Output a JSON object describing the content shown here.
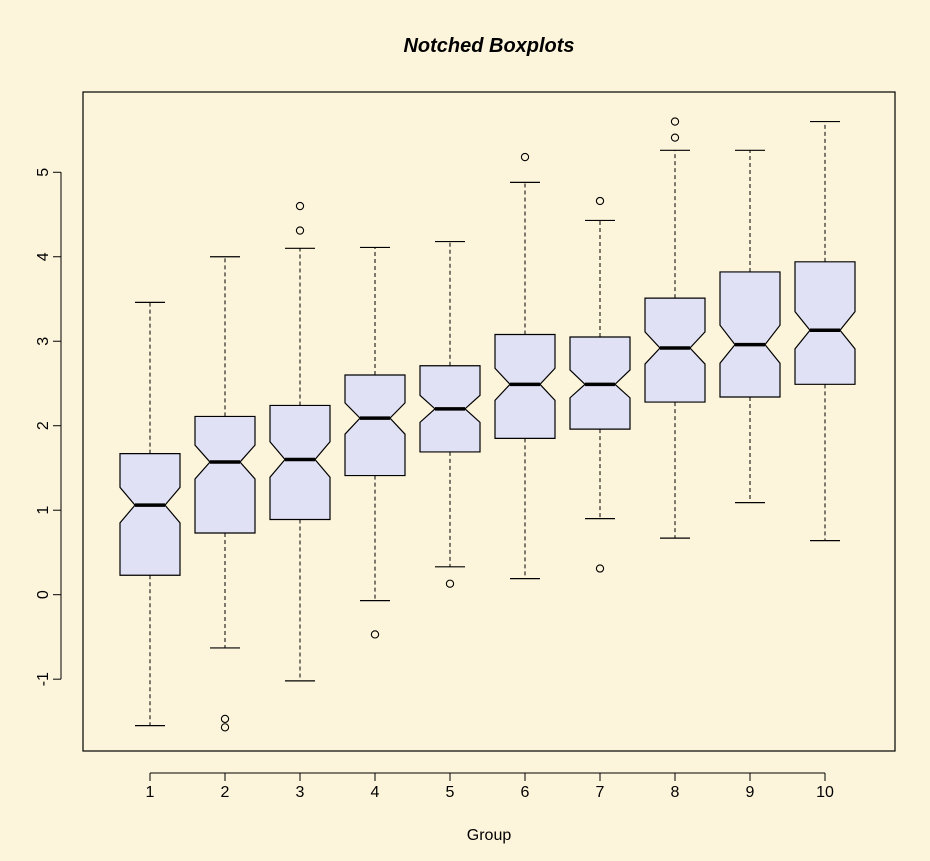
{
  "chart_data": {
    "type": "boxplot",
    "title": "Notched Boxplots",
    "xlabel": "Group",
    "ylabel": "",
    "ylim": [
      -1.85,
      5.95
    ],
    "y_ticks": [
      -1,
      0,
      1,
      2,
      3,
      4,
      5
    ],
    "notched": true,
    "colors": {
      "background": "#fdf5db",
      "box_fill": "#e1e1f5",
      "stroke": "#000000"
    },
    "categories": [
      "1",
      "2",
      "3",
      "4",
      "5",
      "6",
      "7",
      "8",
      "9",
      "10"
    ],
    "boxes": [
      {
        "category": "1",
        "whisker_low": -1.55,
        "q1": 0.23,
        "median": 1.06,
        "q3": 1.67,
        "whisker_high": 3.46,
        "notch": [
          0.85,
          1.27
        ],
        "outliers": []
      },
      {
        "category": "2",
        "whisker_low": -0.63,
        "q1": 0.73,
        "median": 1.57,
        "q3": 2.11,
        "whisker_high": 4.0,
        "notch": [
          1.37,
          1.77
        ],
        "outliers": [
          -1.47,
          -1.57
        ]
      },
      {
        "category": "3",
        "whisker_low": -1.02,
        "q1": 0.89,
        "median": 1.6,
        "q3": 2.24,
        "whisker_high": 4.1,
        "notch": [
          1.39,
          1.81
        ],
        "outliers": [
          4.31,
          4.6
        ]
      },
      {
        "category": "4",
        "whisker_low": -0.07,
        "q1": 1.41,
        "median": 2.09,
        "q3": 2.6,
        "whisker_high": 4.11,
        "notch": [
          1.9,
          2.27
        ],
        "outliers": [
          -0.47
        ]
      },
      {
        "category": "5",
        "whisker_low": 0.33,
        "q1": 1.69,
        "median": 2.2,
        "q3": 2.71,
        "whisker_high": 4.18,
        "notch": [
          2.04,
          2.36
        ],
        "outliers": [
          0.13
        ]
      },
      {
        "category": "6",
        "whisker_low": 0.19,
        "q1": 1.85,
        "median": 2.49,
        "q3": 3.08,
        "whisker_high": 4.88,
        "notch": [
          2.3,
          2.68
        ],
        "outliers": [
          5.18
        ]
      },
      {
        "category": "7",
        "whisker_low": 0.9,
        "q1": 1.96,
        "median": 2.49,
        "q3": 3.05,
        "whisker_high": 4.43,
        "notch": [
          2.33,
          2.66
        ],
        "outliers": [
          0.31,
          4.66
        ]
      },
      {
        "category": "8",
        "whisker_low": 0.67,
        "q1": 2.28,
        "median": 2.92,
        "q3": 3.51,
        "whisker_high": 5.26,
        "notch": [
          2.73,
          3.11
        ],
        "outliers": [
          5.41,
          5.6
        ]
      },
      {
        "category": "9",
        "whisker_low": 1.09,
        "q1": 2.34,
        "median": 2.96,
        "q3": 3.82,
        "whisker_high": 5.26,
        "notch": [
          2.74,
          3.19
        ],
        "outliers": []
      },
      {
        "category": "10",
        "whisker_low": 0.64,
        "q1": 2.49,
        "median": 3.13,
        "q3": 3.94,
        "whisker_high": 5.6,
        "notch": [
          2.91,
          3.35
        ],
        "outliers": []
      }
    ]
  }
}
